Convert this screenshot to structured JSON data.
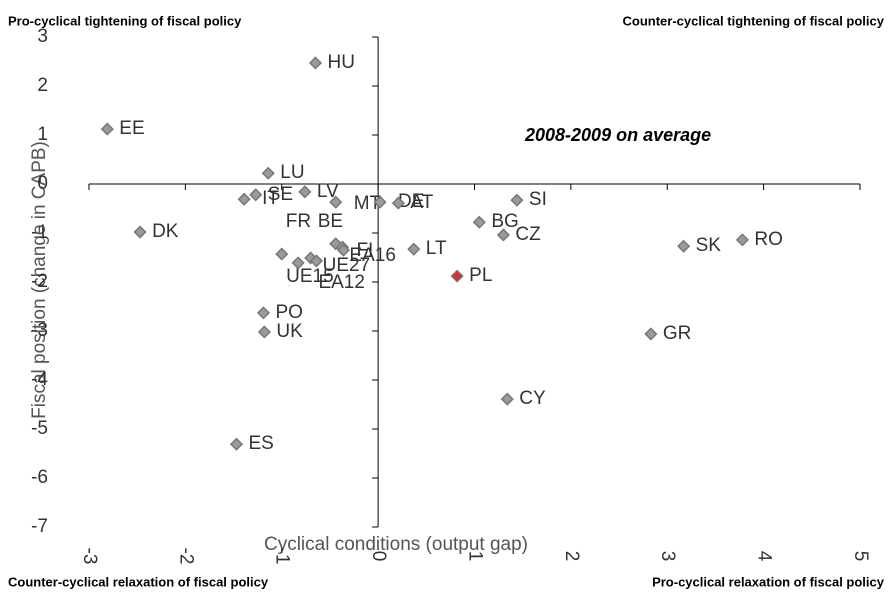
{
  "chart_data": {
    "type": "scatter",
    "corner_notes": [
      "Pro-cyclical tightening of fiscal policy",
      "Counter-cyclical tightening of fiscal policy",
      "Counter-cyclical relaxation of fiscal policy",
      "Pro-cyclical relaxation of fiscal policy"
    ],
    "annotation": "2008-2009 on average",
    "x_label": "Cyclical conditions (output gap)",
    "y_label": "Fiscal position (change in CAPB)",
    "labels": [
      "HU",
      "EE",
      "LU",
      "SE",
      "IT",
      "LV",
      "MT",
      "DE",
      "AT",
      "SI",
      "DK",
      "BG",
      "CZ",
      "FR",
      "BE",
      "FI",
      "EA16",
      "LT",
      "UE15",
      "UE27",
      "EA12",
      "PL",
      "SK",
      "RO",
      "GR",
      "PO",
      "UK",
      "CY",
      "ES"
    ],
    "x": [
      -0.65,
      -2.81,
      -1.14,
      -1.27,
      -1.39,
      -0.76,
      -0.44,
      0.02,
      0.21,
      1.44,
      -2.47,
      1.05,
      1.3,
      -1.0,
      -0.44,
      -0.37,
      -0.36,
      0.37,
      -0.83,
      -0.7,
      -0.64,
      0.82,
      3.17,
      3.78,
      2.83,
      -1.19,
      -1.18,
      1.34,
      -1.47
    ],
    "y": [
      2.47,
      1.12,
      0.22,
      -0.22,
      -0.31,
      -0.16,
      -0.37,
      -0.37,
      -0.39,
      -0.33,
      -0.98,
      -0.78,
      -1.04,
      -1.43,
      -1.22,
      -1.29,
      -1.35,
      -1.33,
      -1.61,
      -1.51,
      -1.57,
      -1.88,
      -1.27,
      -1.14,
      -3.06,
      -2.63,
      -3.02,
      -4.39,
      -5.31
    ],
    "point_colors": [
      "#9a9a9a",
      "#9a9a9a",
      "#9a9a9a",
      "#9a9a9a",
      "#9a9a9a",
      "#9a9a9a",
      "#9a9a9a",
      "#9a9a9a",
      "#9a9a9a",
      "#9a9a9a",
      "#9a9a9a",
      "#9a9a9a",
      "#9a9a9a",
      "#9a9a9a",
      "#9a9a9a",
      "#9a9a9a",
      "#9a9a9a",
      "#9a9a9a",
      "#9a9a9a",
      "#9a9a9a",
      "#9a9a9a",
      "#e8262b",
      "#9a9a9a",
      "#9a9a9a",
      "#9a9a9a",
      "#9a9a9a",
      "#9a9a9a",
      "#9a9a9a",
      "#9a9a9a"
    ],
    "xlim": [
      -3,
      5
    ],
    "ylim": [
      -7,
      3
    ],
    "xticks": [
      -3,
      -2,
      -1,
      0,
      1,
      2,
      3,
      4,
      5
    ],
    "yticks": [
      -7,
      -6,
      -5,
      -4,
      -3,
      -2,
      -1,
      0,
      1,
      2,
      3
    ]
  }
}
